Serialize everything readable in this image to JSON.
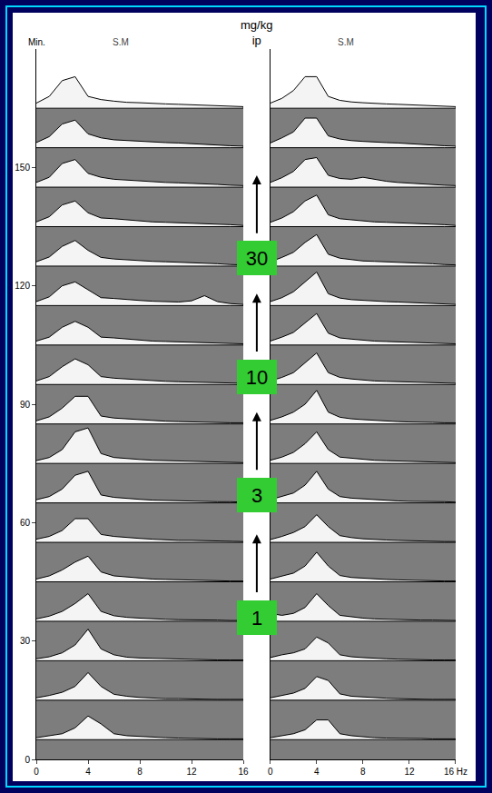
{
  "chart_data": [
    {
      "type": "waterfall",
      "title": "S.M",
      "y_label": "Min.",
      "x": [
        0,
        1,
        2,
        3,
        4,
        5,
        6,
        7,
        8,
        9,
        10,
        11,
        12,
        13,
        14,
        15,
        16
      ],
      "xlim": [
        0,
        16
      ],
      "xticks": [
        0,
        4,
        8,
        12,
        16
      ],
      "ylim": [
        0,
        180
      ],
      "yticks": [
        0,
        30,
        60,
        90,
        120,
        150
      ],
      "grid": false,
      "spectra": [
        {
          "minute": 5,
          "values": [
            0.5,
            1,
            1.5,
            3,
            6,
            4,
            1.5,
            1,
            0.8,
            0.6,
            0.5,
            0.4,
            0.3,
            0.3,
            0.2,
            0.2,
            0.2
          ]
        },
        {
          "minute": 15,
          "values": [
            0.6,
            1.2,
            2,
            3.5,
            7,
            3.5,
            1.5,
            1,
            0.7,
            0.5,
            0.4,
            0.4,
            0.3,
            0.3,
            0.2,
            0.2,
            0.2
          ]
        },
        {
          "minute": 25,
          "values": [
            0.5,
            1,
            2,
            4,
            8,
            3,
            1.5,
            0.9,
            0.7,
            0.6,
            0.5,
            0.4,
            0.3,
            0.2,
            0.2,
            0.2,
            0.2
          ]
        },
        {
          "minute": 35,
          "values": [
            0.6,
            1.3,
            2.5,
            4.5,
            7,
            2.5,
            1.4,
            1,
            0.8,
            0.6,
            0.5,
            0.4,
            0.4,
            0.3,
            0.3,
            0.2,
            0.2
          ]
        },
        {
          "minute": 45,
          "values": [
            0.7,
            1.5,
            3,
            5,
            6.5,
            2.5,
            1.5,
            1.2,
            0.9,
            0.7,
            0.6,
            0.5,
            0.4,
            0.3,
            0.3,
            0.2,
            0.2
          ]
        },
        {
          "minute": 55,
          "values": [
            0.8,
            1.5,
            3,
            6,
            6,
            2,
            1.5,
            1.2,
            1,
            0.8,
            0.6,
            0.5,
            0.5,
            0.4,
            0.3,
            0.3,
            0.2
          ]
        },
        {
          "minute": 65,
          "values": [
            0.8,
            1.6,
            3.5,
            7,
            8,
            2,
            1.4,
            1.1,
            0.9,
            0.7,
            0.6,
            0.5,
            0.4,
            0.4,
            0.3,
            0.3,
            0.2
          ]
        },
        {
          "minute": 75,
          "values": [
            0.7,
            1.5,
            3.5,
            8,
            9,
            2.5,
            1.5,
            1.2,
            1,
            0.8,
            0.7,
            0.6,
            0.5,
            0.4,
            0.3,
            0.3,
            0.2
          ]
        },
        {
          "minute": 85,
          "values": [
            0.8,
            1.8,
            4,
            7,
            7,
            2,
            1.5,
            1.3,
            1,
            0.9,
            0.7,
            0.6,
            0.5,
            0.5,
            0.4,
            0.3,
            0.3
          ]
        },
        {
          "minute": 95,
          "values": [
            0.9,
            2,
            4.5,
            6.5,
            5,
            2,
            1.6,
            1.4,
            1.1,
            1,
            0.8,
            0.7,
            0.6,
            0.5,
            0.4,
            0.3,
            0.3
          ]
        },
        {
          "minute": 105,
          "values": [
            1,
            2,
            4.5,
            6,
            4.5,
            2,
            1.8,
            1.5,
            1.2,
            1,
            0.9,
            0.8,
            0.7,
            0.6,
            0.5,
            0.4,
            0.3
          ]
        },
        {
          "minute": 115,
          "values": [
            1,
            2.2,
            5,
            6,
            4,
            2,
            1.8,
            1.5,
            1.3,
            1.1,
            1,
            0.9,
            1.2,
            2.5,
            1,
            0.5,
            0.3
          ]
        },
        {
          "minute": 125,
          "values": [
            1.1,
            2.3,
            5,
            6.5,
            4,
            2.2,
            1.8,
            1.6,
            1.3,
            1.2,
            1.1,
            1,
            0.9,
            0.8,
            0.6,
            0.4,
            0.3
          ]
        },
        {
          "minute": 135,
          "values": [
            1.2,
            2.5,
            5.5,
            6.5,
            3.5,
            2.2,
            2,
            1.7,
            1.4,
            1.2,
            1.1,
            1,
            0.9,
            0.8,
            0.6,
            0.5,
            0.3
          ]
        },
        {
          "minute": 145,
          "values": [
            1.2,
            2.5,
            6,
            7,
            3.5,
            2.5,
            2,
            1.8,
            1.5,
            1.3,
            1.2,
            1.1,
            1,
            0.9,
            0.7,
            0.5,
            0.4
          ]
        },
        {
          "minute": 155,
          "values": [
            1.3,
            2.8,
            6,
            7,
            3.5,
            2.5,
            2,
            1.8,
            1.6,
            1.4,
            1.3,
            1.2,
            1,
            0.9,
            0.7,
            0.5,
            0.4
          ]
        },
        {
          "minute": 165,
          "values": [
            1.3,
            3,
            7,
            8,
            3,
            2.2,
            1.8,
            1.5,
            1.4,
            1.2,
            1.1,
            1,
            0.9,
            0.8,
            0.6,
            0.5,
            0.4
          ]
        }
      ],
      "annotations": {
        "unit": "mg/kg ip",
        "doses": [
          1,
          3,
          10,
          30
        ],
        "dose_minutes": [
          36,
          67,
          97,
          127
        ],
        "color": "#33cc33"
      }
    },
    {
      "type": "waterfall",
      "title": "S.M",
      "x": [
        0,
        1,
        2,
        3,
        4,
        5,
        6,
        7,
        8,
        9,
        10,
        11,
        12,
        13,
        14,
        15,
        16
      ],
      "xlim": [
        0,
        16
      ],
      "xticks": [
        0,
        4,
        8,
        12,
        {
          "value": 16,
          "label": "16 Hz"
        }
      ],
      "ylim": [
        0,
        180
      ],
      "tick_labels": "x",
      "grid": false,
      "spectra": [
        {
          "minute": 5,
          "values": [
            0.5,
            1,
            1.5,
            2.5,
            5,
            5,
            1.5,
            1,
            0.7,
            0.5,
            0.4,
            0.4,
            0.3,
            0.3,
            0.2,
            0.2,
            0.2
          ]
        },
        {
          "minute": 15,
          "values": [
            0.6,
            1.2,
            1.8,
            3,
            6,
            5,
            1.6,
            1,
            0.8,
            0.6,
            0.5,
            0.4,
            0.3,
            0.3,
            0.2,
            0.2,
            0.2
          ]
        },
        {
          "minute": 25,
          "values": [
            0.8,
            1.5,
            2,
            3,
            6,
            4.5,
            1.5,
            1,
            0.8,
            0.6,
            0.5,
            0.4,
            0.3,
            0.3,
            0.2,
            0.2,
            0.2
          ]
        },
        {
          "minute": 35,
          "values": [
            2,
            1.5,
            2,
            3.5,
            7,
            4,
            1.5,
            1.1,
            0.8,
            0.6,
            0.5,
            0.4,
            0.4,
            0.3,
            0.3,
            0.2,
            0.2
          ]
        },
        {
          "minute": 45,
          "values": [
            0.7,
            1.4,
            2.2,
            4,
            7.5,
            4,
            1.6,
            1.1,
            0.9,
            0.7,
            0.6,
            0.5,
            0.4,
            0.3,
            0.3,
            0.2,
            0.2
          ]
        },
        {
          "minute": 55,
          "values": [
            0.7,
            1.5,
            2.5,
            4,
            7,
            4,
            1.7,
            1.2,
            0.9,
            0.7,
            0.6,
            0.5,
            0.4,
            0.4,
            0.3,
            0.2,
            0.2
          ]
        },
        {
          "minute": 65,
          "values": [
            0.8,
            1.6,
            2.5,
            4.5,
            8,
            3.5,
            1.6,
            1.2,
            1,
            0.8,
            0.6,
            0.5,
            0.4,
            0.4,
            0.3,
            0.3,
            0.2
          ]
        },
        {
          "minute": 75,
          "values": [
            0.8,
            1.6,
            2.8,
            5,
            8,
            3.5,
            1.6,
            1.3,
            1,
            0.8,
            0.7,
            0.6,
            0.5,
            0.4,
            0.3,
            0.3,
            0.2
          ]
        },
        {
          "minute": 85,
          "values": [
            0.9,
            1.8,
            3,
            5,
            8.5,
            3,
            1.7,
            1.3,
            1.1,
            0.9,
            0.7,
            0.6,
            0.5,
            0.5,
            0.4,
            0.3,
            0.3
          ]
        },
        {
          "minute": 95,
          "values": [
            0.9,
            1.8,
            3,
            5.5,
            8,
            3,
            1.8,
            1.4,
            1.1,
            0.9,
            0.8,
            0.7,
            0.6,
            0.5,
            0.4,
            0.3,
            0.3
          ]
        },
        {
          "minute": 105,
          "values": [
            1,
            2,
            3.2,
            5.5,
            8,
            3,
            1.8,
            1.5,
            1.2,
            1,
            0.9,
            0.8,
            0.7,
            0.6,
            0.5,
            0.4,
            0.3
          ]
        },
        {
          "minute": 115,
          "values": [
            1,
            2,
            3.5,
            6,
            8.5,
            3,
            1.9,
            1.5,
            1.3,
            1.1,
            1,
            0.9,
            0.8,
            0.7,
            0.5,
            0.4,
            0.3
          ]
        },
        {
          "minute": 125,
          "values": [
            1.1,
            2.2,
            3.5,
            6,
            8,
            3,
            2,
            1.6,
            1.3,
            1.2,
            1.1,
            1,
            0.9,
            0.8,
            0.6,
            0.4,
            0.3
          ]
        },
        {
          "minute": 135,
          "values": [
            1.1,
            2.2,
            3.8,
            6.5,
            8,
            3,
            2,
            1.7,
            1.4,
            1.2,
            1.1,
            1,
            0.9,
            0.8,
            0.6,
            0.5,
            0.3
          ]
        },
        {
          "minute": 145,
          "values": [
            1.2,
            2.4,
            4,
            7,
            7.5,
            3,
            2.2,
            2,
            2.5,
            2,
            1.5,
            1.2,
            1,
            0.9,
            0.7,
            0.5,
            0.4
          ]
        },
        {
          "minute": 155,
          "values": [
            1.2,
            2.5,
            4,
            7.5,
            7.5,
            3,
            2.2,
            1.8,
            1.6,
            1.4,
            1.3,
            1.2,
            1,
            0.9,
            0.7,
            0.5,
            0.4
          ]
        },
        {
          "minute": 165,
          "values": [
            1.3,
            2.5,
            4.5,
            8,
            8,
            3,
            2,
            1.6,
            1.4,
            1.2,
            1.1,
            1,
            0.9,
            0.8,
            0.6,
            0.5,
            0.4
          ]
        }
      ]
    }
  ]
}
